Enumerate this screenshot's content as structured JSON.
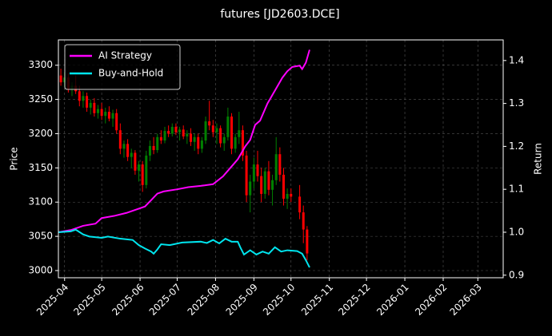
{
  "chart_data": {
    "type": "candlestick",
    "title": "futures [JD2603.DCE]",
    "ylabel": "Price",
    "y2label": "Return",
    "grid": true,
    "legend": "upper left",
    "up_color": "#008000",
    "down_color": "#ff0000",
    "xlim": [
      -5,
      354.5
    ],
    "xticks": [
      {
        "value": 0,
        "label": "2025-04"
      },
      {
        "value": 30,
        "label": "2025-05"
      },
      {
        "value": 61,
        "label": "2025-06"
      },
      {
        "value": 91,
        "label": "2025-07"
      },
      {
        "value": 122,
        "label": "2025-08"
      },
      {
        "value": 153,
        "label": "2025-09"
      },
      {
        "value": 183,
        "label": "2025-10"
      },
      {
        "value": 214,
        "label": "2025-11"
      },
      {
        "value": 244,
        "label": "2025-12"
      },
      {
        "value": 275,
        "label": "2026-01"
      },
      {
        "value": 306,
        "label": "2026-02"
      },
      {
        "value": 334,
        "label": "2026-03"
      }
    ],
    "ylim": [
      2989.5,
      3337
    ],
    "yticks": [
      3000,
      3050,
      3100,
      3150,
      3200,
      3250,
      3300
    ],
    "y2lim": [
      0.894,
      1.448
    ],
    "y2ticks": [
      0.9,
      {
        "value": 1,
        "label": "1.0"
      },
      1.1,
      1.2,
      1.3,
      1.4
    ],
    "x": [
      -3,
      0,
      3,
      6,
      9,
      12,
      15,
      18,
      21,
      24,
      27,
      30,
      33,
      36,
      39,
      42,
      45,
      48,
      51,
      54,
      57,
      60,
      63,
      66,
      69,
      72,
      75,
      78,
      81,
      84,
      87,
      90,
      93,
      96,
      99,
      102,
      105,
      108,
      111,
      114,
      117,
      120,
      123,
      126,
      129,
      132,
      135,
      138,
      141,
      144,
      147,
      150,
      153,
      156,
      159,
      162,
      165,
      168,
      171,
      174,
      177,
      180,
      183,
      190,
      193,
      196
    ],
    "open": [
      3285,
      3275,
      3282,
      3265,
      3270,
      3262,
      3248,
      3255,
      3238,
      3245,
      3230,
      3236,
      3226,
      3232,
      3222,
      3230,
      3205,
      3178,
      3185,
      3166,
      3172,
      3146,
      3155,
      3125,
      3168,
      3182,
      3176,
      3195,
      3190,
      3204,
      3200,
      3210,
      3202,
      3206,
      3196,
      3200,
      3188,
      3195,
      3178,
      3190,
      3218,
      3212,
      3202,
      3208,
      3186,
      3195,
      3225,
      3178,
      3195,
      3205,
      3168,
      3110,
      3130,
      3155,
      3138,
      3112,
      3145,
      3118,
      3132,
      3170,
      3140,
      3105,
      3112,
      3108,
      3085,
      3060
    ],
    "high": [
      3295,
      3290,
      3288,
      3275,
      3285,
      3270,
      3262,
      3260,
      3250,
      3252,
      3242,
      3245,
      3238,
      3240,
      3235,
      3236,
      3215,
      3190,
      3192,
      3178,
      3176,
      3160,
      3160,
      3175,
      3190,
      3195,
      3200,
      3205,
      3210,
      3212,
      3215,
      3215,
      3210,
      3212,
      3205,
      3208,
      3200,
      3200,
      3195,
      3225,
      3248,
      3220,
      3215,
      3212,
      3200,
      3238,
      3230,
      3200,
      3232,
      3212,
      3175,
      3140,
      3165,
      3175,
      3150,
      3150,
      3160,
      3140,
      3195,
      3180,
      3150,
      3120,
      3120,
      3125,
      3095,
      3065
    ],
    "low": [
      3270,
      3268,
      3260,
      3255,
      3258,
      3240,
      3238,
      3232,
      3228,
      3225,
      3222,
      3220,
      3215,
      3218,
      3210,
      3200,
      3170,
      3165,
      3160,
      3150,
      3140,
      3130,
      3115,
      3120,
      3160,
      3170,
      3172,
      3185,
      3186,
      3195,
      3196,
      3198,
      3190,
      3192,
      3185,
      3182,
      3175,
      3170,
      3172,
      3185,
      3205,
      3195,
      3185,
      3180,
      3175,
      3190,
      3170,
      3172,
      3185,
      3160,
      3100,
      3085,
      3120,
      3130,
      3100,
      3105,
      3110,
      3095,
      3125,
      3130,
      3095,
      3090,
      3100,
      3075,
      3040,
      3015
    ],
    "close": [
      3275,
      3282,
      3265,
      3270,
      3262,
      3248,
      3255,
      3238,
      3245,
      3230,
      3236,
      3226,
      3232,
      3222,
      3230,
      3205,
      3178,
      3185,
      3166,
      3172,
      3146,
      3155,
      3125,
      3168,
      3182,
      3176,
      3195,
      3190,
      3204,
      3200,
      3210,
      3202,
      3206,
      3196,
      3200,
      3188,
      3195,
      3178,
      3190,
      3218,
      3212,
      3202,
      3208,
      3186,
      3195,
      3225,
      3178,
      3195,
      3205,
      3168,
      3110,
      3130,
      3155,
      3138,
      3112,
      3145,
      3118,
      3132,
      3170,
      3140,
      3105,
      3112,
      3108,
      3085,
      3060,
      3025
    ],
    "series": [
      {
        "name": "AI Strategy",
        "color": "#ff00ff",
        "axis": "y2",
        "x": [
          -5,
          5,
          15,
          25,
          30,
          40,
          50,
          60,
          65,
          70,
          75,
          80,
          91,
          100,
          110,
          120,
          128,
          134,
          140,
          146,
          150,
          154,
          158,
          164,
          170,
          176,
          180,
          184,
          190,
          192,
          195,
          198
        ],
        "values": [
          1.0,
          1.005,
          1.015,
          1.02,
          1.033,
          1.038,
          1.045,
          1.055,
          1.06,
          1.075,
          1.09,
          1.095,
          1.1,
          1.105,
          1.108,
          1.112,
          1.13,
          1.15,
          1.17,
          1.2,
          1.215,
          1.25,
          1.26,
          1.3,
          1.33,
          1.36,
          1.375,
          1.385,
          1.388,
          1.38,
          1.395,
          1.425
        ]
      },
      {
        "name": "Buy-and-Hold",
        "color": "#00e5ee",
        "axis": "y2",
        "x": [
          -5,
          5,
          9,
          15,
          20,
          30,
          35,
          45,
          55,
          60,
          65,
          70,
          72,
          75,
          78,
          85,
          95,
          110,
          115,
          120,
          125,
          130,
          135,
          140,
          142,
          145,
          150,
          155,
          160,
          165,
          170,
          175,
          180,
          188,
          192,
          195,
          198
        ],
        "values": [
          1.0,
          1.002,
          1.006,
          0.995,
          0.99,
          0.987,
          0.99,
          0.985,
          0.982,
          0.97,
          0.962,
          0.955,
          0.95,
          0.96,
          0.972,
          0.97,
          0.976,
          0.978,
          0.975,
          0.982,
          0.974,
          0.985,
          0.978,
          0.978,
          0.965,
          0.948,
          0.958,
          0.948,
          0.955,
          0.95,
          0.965,
          0.955,
          0.958,
          0.956,
          0.95,
          0.935,
          0.918
        ]
      }
    ]
  }
}
